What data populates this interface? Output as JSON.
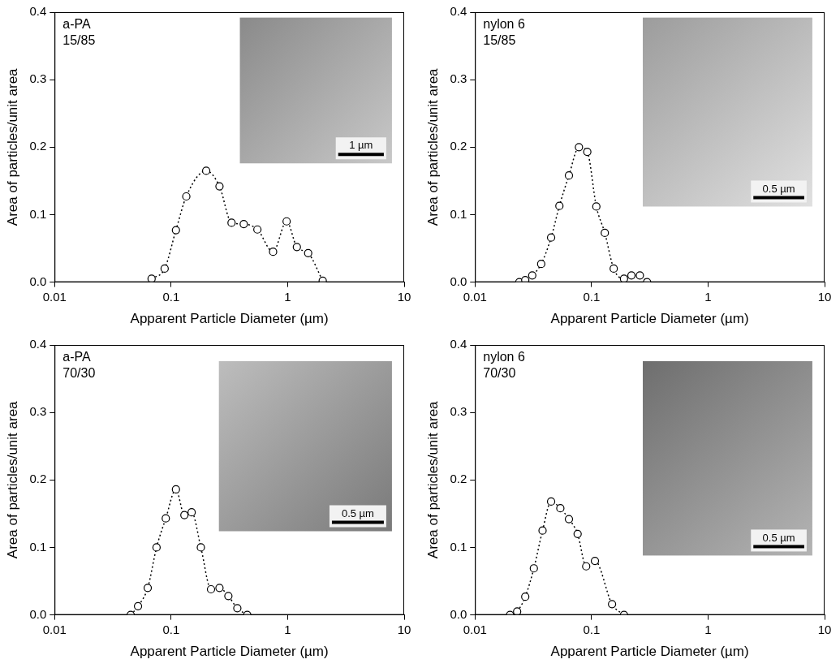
{
  "chart_data": [
    {
      "type": "line",
      "title": "a-PA\n15/85",
      "xlabel": "Apparent Particle Diameter (µm)",
      "ylabel": "Area of particles/unit area",
      "x": [
        0.068,
        0.088,
        0.11,
        0.135,
        0.2,
        0.26,
        0.33,
        0.42,
        0.55,
        0.75,
        0.98,
        1.2,
        1.5,
        2.0
      ],
      "values": [
        0.005,
        0.02,
        0.077,
        0.127,
        0.165,
        0.142,
        0.088,
        0.086,
        0.078,
        0.045,
        0.09,
        0.052,
        0.043,
        0.002
      ],
      "color": "#000000",
      "marker": "circle",
      "line_style": "dotted",
      "log": "x",
      "grid": false,
      "xlim": [
        0.01,
        10
      ],
      "xticks": [
        0.01,
        0.1,
        1,
        10
      ],
      "ylim": [
        0,
        0.4
      ],
      "yticks": [
        {
          "value": 0,
          "label": "0.0"
        },
        0.1,
        0.2,
        0.3,
        0.4
      ],
      "annotations": [
        "1 µm"
      ]
    },
    {
      "type": "line",
      "title": "nylon 6\n15/85",
      "xlabel": "Apparent Particle Diameter (µm)",
      "ylabel": "Area of particles/unit area",
      "x": [
        0.024,
        0.027,
        0.031,
        0.037,
        0.045,
        0.053,
        0.064,
        0.078,
        0.092,
        0.11,
        0.13,
        0.155,
        0.19,
        0.22,
        0.26,
        0.3
      ],
      "values": [
        0.0,
        0.003,
        0.01,
        0.027,
        0.066,
        0.113,
        0.158,
        0.2,
        0.193,
        0.112,
        0.073,
        0.02,
        0.005,
        0.01,
        0.01,
        0.0
      ],
      "color": "#000000",
      "marker": "circle",
      "line_style": "dotted",
      "log": "x",
      "grid": false,
      "xlim": [
        0.01,
        10
      ],
      "xticks": [
        0.01,
        0.1,
        1,
        10
      ],
      "ylim": [
        0,
        0.4
      ],
      "yticks": [
        {
          "value": 0,
          "label": "0.0"
        },
        0.1,
        0.2,
        0.3,
        0.4
      ],
      "annotations": [
        "0.5 µm"
      ]
    },
    {
      "type": "line",
      "title": "a-PA\n70/30",
      "xlabel": "Apparent Particle Diameter (µm)",
      "ylabel": "Area of particles/unit area",
      "x": [
        0.045,
        0.052,
        0.063,
        0.075,
        0.09,
        0.11,
        0.13,
        0.15,
        0.18,
        0.22,
        0.26,
        0.31,
        0.37,
        0.45
      ],
      "values": [
        0.0,
        0.013,
        0.04,
        0.1,
        0.143,
        0.186,
        0.148,
        0.152,
        0.1,
        0.038,
        0.04,
        0.028,
        0.01,
        0.0
      ],
      "color": "#000000",
      "marker": "circle",
      "line_style": "dotted",
      "log": "x",
      "grid": false,
      "xlim": [
        0.01,
        10
      ],
      "xticks": [
        0.01,
        0.1,
        1,
        10
      ],
      "ylim": [
        0,
        0.4
      ],
      "yticks": [
        {
          "value": 0,
          "label": "0.0"
        },
        0.1,
        0.2,
        0.3,
        0.4
      ],
      "annotations": [
        "0.5 µm"
      ]
    },
    {
      "type": "line",
      "title": "nylon 6\n70/30",
      "xlabel": "Apparent Particle Diameter (µm)",
      "ylabel": "Area of particles/unit area",
      "x": [
        0.02,
        0.023,
        0.027,
        0.032,
        0.038,
        0.045,
        0.054,
        0.064,
        0.076,
        0.09,
        0.107,
        0.15,
        0.19
      ],
      "values": [
        0.0,
        0.005,
        0.027,
        0.069,
        0.125,
        0.168,
        0.158,
        0.142,
        0.12,
        0.072,
        0.08,
        0.016,
        0.0
      ],
      "color": "#000000",
      "marker": "circle",
      "line_style": "dotted",
      "log": "x",
      "grid": false,
      "xlim": [
        0.01,
        10
      ],
      "xticks": [
        0.01,
        0.1,
        1,
        10
      ],
      "ylim": [
        0,
        0.4
      ],
      "yticks": [
        {
          "value": 0,
          "label": "0.0"
        },
        0.1,
        0.2,
        0.3,
        0.4
      ],
      "annotations": [
        "0.5 µm"
      ]
    }
  ]
}
